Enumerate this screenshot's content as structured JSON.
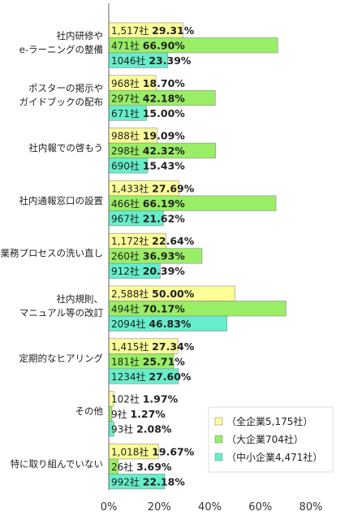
{
  "chart_data": {
    "type": "bar",
    "orientation": "horizontal",
    "categories": [
      [
        "社内研修や",
        "e-ラーニングの整備"
      ],
      [
        "ポスターの掲示や",
        "ガイドブックの配布"
      ],
      [
        "社内報での啓もう"
      ],
      [
        "社内通報窓口の設置"
      ],
      [
        "業務プロセスの洗い直し"
      ],
      [
        "社内規則、",
        "マニュアル等の改訂"
      ],
      [
        "定期的なヒアリング"
      ],
      [
        "その他"
      ],
      [
        "特に取り組んでいない"
      ]
    ],
    "series": [
      {
        "name": "（全企業5,175社）",
        "color": "#ffff99",
        "values": [
          29.31,
          18.7,
          19.09,
          27.69,
          22.64,
          50.0,
          27.34,
          1.97,
          19.67
        ],
        "counts": [
          "1,517社",
          "968社",
          "988社",
          "1,433社",
          "1,172社",
          "2,588社",
          "1,415社",
          "102社",
          "1,018社"
        ],
        "labels": [
          "29.31%",
          "18.70%",
          "19.09%",
          "27.69%",
          "22.64%",
          "50.00%",
          "27.34%",
          "1.97%",
          "19.67%"
        ]
      },
      {
        "name": "（大企業704社）",
        "color": "#99ee66",
        "values": [
          66.9,
          42.18,
          42.32,
          66.19,
          36.93,
          70.17,
          25.71,
          1.27,
          3.69
        ],
        "counts": [
          "471社",
          "297社",
          "298社",
          "466社",
          "260社",
          "494社",
          "181社",
          "9社",
          "26社"
        ],
        "labels": [
          "66.90%",
          "42.18%",
          "42.32%",
          "66.19%",
          "36.93%",
          "70.17%",
          "25.71%",
          "1.27%",
          "3.69%"
        ]
      },
      {
        "name": "（中小企業4,471社）",
        "color": "#66eecc",
        "values": [
          23.39,
          15.0,
          15.43,
          21.62,
          20.39,
          46.83,
          27.6,
          2.08,
          22.18
        ],
        "counts": [
          "1046社",
          "671社",
          "690社",
          "967社",
          "912社",
          "2094社",
          "1234社",
          "93社",
          "992社"
        ],
        "labels": [
          "23.39%",
          "15.00%",
          "15.43%",
          "21.62%",
          "20.39%",
          "46.83%",
          "27.60%",
          "2.08%",
          "22.18%"
        ]
      }
    ],
    "xlim": [
      0,
      80
    ],
    "xticks": [
      "0%",
      "20%",
      "40%",
      "60%",
      "80%"
    ],
    "xtick_values": [
      0,
      20,
      40,
      60,
      80
    ],
    "legend_position": "bottom-right",
    "grid": false
  }
}
